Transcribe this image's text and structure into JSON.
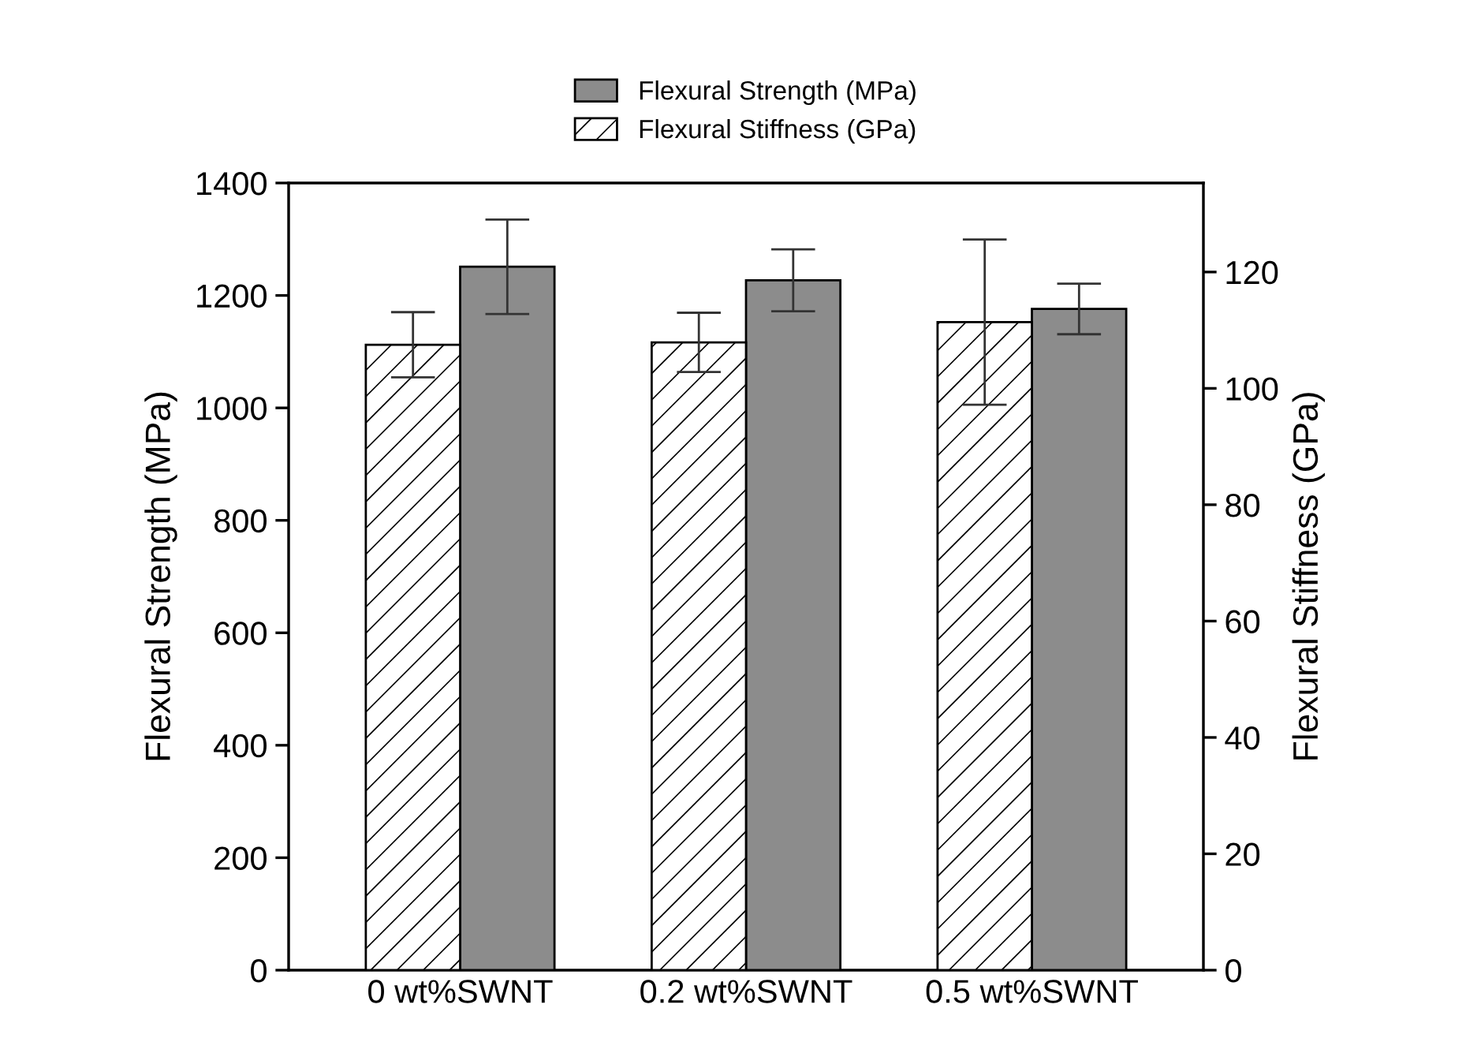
{
  "chart_data": {
    "type": "bar",
    "categories": [
      "0 wt%SWNT",
      "0.2 wt%SWNT",
      "0.5 wt%SWNT"
    ],
    "ylabel": "Flexural Strength (MPa)",
    "y2label": "Flexural Stiffness (GPa)",
    "series": [
      {
        "name": "Flexural Stiffness (GPa)",
        "color": "#000000",
        "axis": "y2",
        "values": [
          107.5,
          107.9,
          111.4
        ],
        "errors": [
          5.6,
          5.1,
          14.2
        ]
      },
      {
        "name": "Flexural Strength (MPa)",
        "color": "#8c8c8c",
        "values": [
          1251,
          1227,
          1176
        ],
        "errors": [
          84,
          55,
          45
        ]
      }
    ],
    "ylim": [
      0,
      1400
    ],
    "yticks": [
      0,
      200,
      400,
      600,
      800,
      1000,
      1200,
      1400
    ],
    "y2lim": [
      0,
      135.3
    ],
    "y2ticks": [
      0,
      20,
      40,
      60,
      80,
      100,
      120
    ],
    "legend": "top",
    "grid": false
  }
}
